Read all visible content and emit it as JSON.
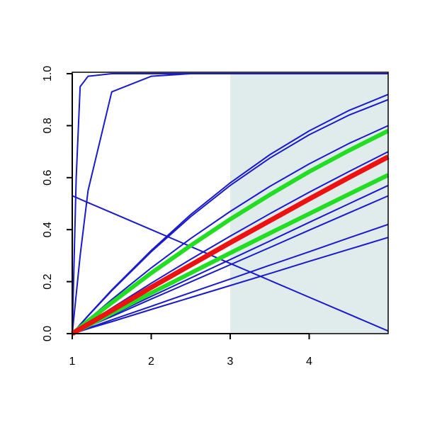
{
  "chart_data": {
    "type": "line",
    "x": [
      1,
      1.05,
      1.1,
      1.2,
      1.5,
      2,
      2.5,
      3,
      3.5,
      4,
      4.5,
      5
    ],
    "xlim": [
      1,
      5
    ],
    "ylim": [
      0,
      1
    ],
    "xticks": [
      1,
      2,
      3,
      4
    ],
    "yticks": [
      {
        "value": 0,
        "label": "0.0"
      },
      0.2,
      0.4,
      0.6,
      0.8,
      {
        "value": 1,
        "label": "1.0"
      }
    ],
    "shaded_region": {
      "x": [
        3,
        5
      ],
      "color": "#e0ecec"
    },
    "series": [
      {
        "color": "#1a1acc",
        "width": 2,
        "values": [
          0,
          0.6,
          0.95,
          0.99,
          1,
          1,
          1,
          1,
          1,
          1,
          1,
          1
        ]
      },
      {
        "color": "#1a1acc",
        "width": 2,
        "values": [
          0,
          0.15,
          0.3,
          0.55,
          0.93,
          0.99,
          1,
          1,
          1,
          1,
          1,
          1
        ]
      },
      {
        "color": "#1a1acc",
        "width": 2,
        "values": [
          0.53,
          0.524,
          0.517,
          0.504,
          0.465,
          0.4,
          0.335,
          0.27,
          0.205,
          0.14,
          0.075,
          0.01
        ]
      },
      {
        "color": "#1a1acc",
        "width": 2,
        "values": [
          0,
          0.017,
          0.035,
          0.069,
          0.168,
          0.32,
          0.458,
          0.58,
          0.688,
          0.78,
          0.858,
          0.92
        ]
      },
      {
        "color": "#1a1acc",
        "width": 2,
        "values": [
          0,
          0.017,
          0.034,
          0.068,
          0.165,
          0.315,
          0.45,
          0.57,
          0.675,
          0.765,
          0.84,
          0.9
        ]
      },
      {
        "color": "#1a1acc",
        "width": 2,
        "values": [
          0,
          0.013,
          0.027,
          0.053,
          0.131,
          0.253,
          0.366,
          0.47,
          0.566,
          0.653,
          0.731,
          0.8
        ]
      },
      {
        "color": "#1a1acc",
        "width": 2,
        "values": [
          0,
          0.01,
          0.02,
          0.04,
          0.098,
          0.194,
          0.286,
          0.375,
          0.461,
          0.544,
          0.623,
          0.7
        ]
      },
      {
        "color": "#1a1acc",
        "width": 2,
        "values": [
          0,
          0.007,
          0.014,
          0.029,
          0.071,
          0.143,
          0.214,
          0.285,
          0.356,
          0.428,
          0.499,
          0.57
        ]
      },
      {
        "color": "#1a1acc",
        "width": 2,
        "values": [
          0,
          0.007,
          0.013,
          0.027,
          0.066,
          0.133,
          0.199,
          0.265,
          0.331,
          0.398,
          0.464,
          0.53
        ]
      },
      {
        "color": "#1a1acc",
        "width": 2,
        "values": [
          0,
          0.005,
          0.011,
          0.021,
          0.053,
          0.105,
          0.158,
          0.21,
          0.263,
          0.315,
          0.368,
          0.42
        ]
      },
      {
        "color": "#1a1acc",
        "width": 2,
        "values": [
          0,
          0.005,
          0.009,
          0.019,
          0.046,
          0.093,
          0.139,
          0.185,
          0.231,
          0.278,
          0.324,
          0.37
        ]
      },
      {
        "color": "#22dd22",
        "width": 6,
        "values": [
          0,
          0.012,
          0.024,
          0.049,
          0.119,
          0.233,
          0.339,
          0.44,
          0.534,
          0.623,
          0.704,
          0.78
        ]
      },
      {
        "color": "#22dd22",
        "width": 6,
        "values": [
          0,
          0.008,
          0.016,
          0.031,
          0.078,
          0.156,
          0.233,
          0.31,
          0.386,
          0.461,
          0.536,
          0.61
        ]
      },
      {
        "color": "#ee1111",
        "width": 7,
        "values": [
          0,
          0.009,
          0.018,
          0.036,
          0.089,
          0.178,
          0.264,
          0.35,
          0.434,
          0.518,
          0.6,
          0.68
        ]
      }
    ]
  }
}
